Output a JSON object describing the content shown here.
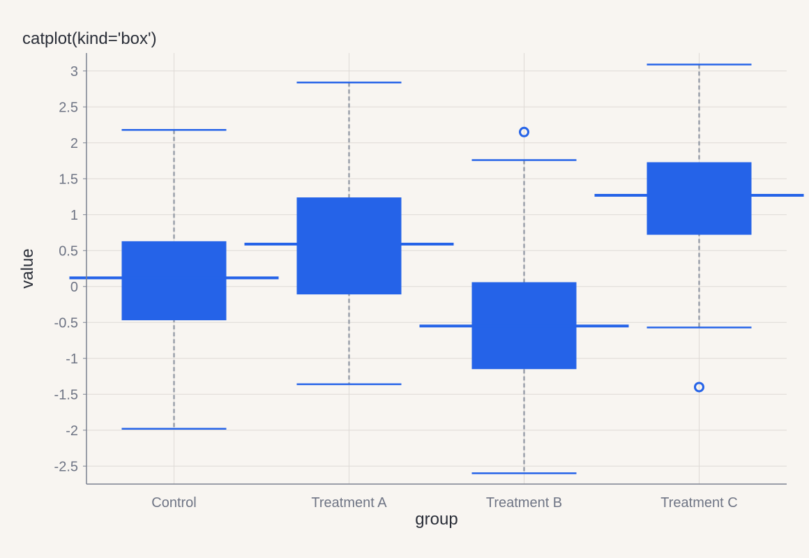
{
  "chart_data": {
    "type": "box",
    "title": "catplot(kind='box')",
    "xlabel": "group",
    "ylabel": "value",
    "categories": [
      "Control",
      "Treatment A",
      "Treatment B",
      "Treatment C"
    ],
    "ylim": [
      -2.75,
      3.25
    ],
    "yticks": [
      -2.5,
      -2,
      -1.5,
      -1,
      -0.5,
      0,
      0.5,
      1,
      1.5,
      2,
      2.5,
      3
    ],
    "ytick_labels": [
      "-2.5",
      "-2",
      "-1.5",
      "-1",
      "-0.5",
      "0",
      "0.5",
      "1",
      "1.5",
      "2",
      "2.5",
      "3"
    ],
    "grid": true,
    "boxes": [
      {
        "category": "Control",
        "whisker_low": -1.98,
        "q1": -0.47,
        "median": 0.12,
        "q3": 0.63,
        "whisker_high": 2.18,
        "outliers": []
      },
      {
        "category": "Treatment A",
        "whisker_low": -1.36,
        "q1": -0.11,
        "median": 0.59,
        "q3": 1.24,
        "whisker_high": 2.84,
        "outliers": []
      },
      {
        "category": "Treatment B",
        "whisker_low": -2.6,
        "q1": -1.15,
        "median": -0.55,
        "q3": 0.06,
        "whisker_high": 1.76,
        "outliers": [
          2.15
        ]
      },
      {
        "category": "Treatment C",
        "whisker_low": -0.57,
        "q1": 0.72,
        "median": 1.27,
        "q3": 1.73,
        "whisker_high": 3.09,
        "outliers": [
          -1.4
        ]
      }
    ],
    "colors": {
      "box": "#2563e8",
      "whisker": "#9aa0aa",
      "grid": "#dedad6",
      "axis": "#7b8190",
      "text": "#6e7484",
      "title": "#2a2e38"
    }
  }
}
